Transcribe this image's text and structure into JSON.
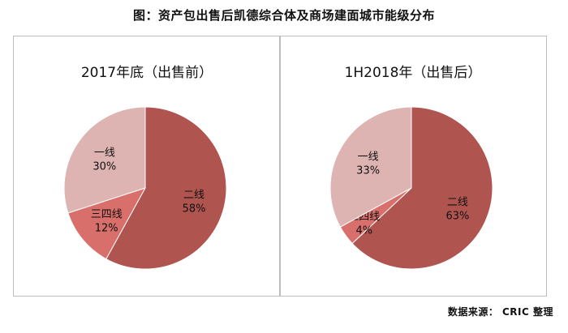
{
  "title": "图：资产包出售后凯德综合体及商场建面城市能级分布",
  "source": "数据来源： CRIC 整理",
  "colors": {
    "tier2": "#b05450",
    "tier3_4": "#d86f6b",
    "tier1": "#ddb4b1"
  },
  "chart_data": [
    {
      "type": "pie",
      "title": "2017年底（出售前）",
      "slices": [
        {
          "label": "二线",
          "value": 58,
          "display": "58%",
          "color": "#b05450"
        },
        {
          "label": "三四线",
          "value": 12,
          "display": "12%",
          "color": "#d86f6b"
        },
        {
          "label": "一线",
          "value": 30,
          "display": "30%",
          "color": "#ddb4b1"
        }
      ]
    },
    {
      "type": "pie",
      "title": "1H2018年（出售后）",
      "slices": [
        {
          "label": "二线",
          "value": 63,
          "display": "63%",
          "color": "#b05450"
        },
        {
          "label": "三四线",
          "value": 4,
          "display": "4%",
          "color": "#d86f6b"
        },
        {
          "label": "一线",
          "value": 33,
          "display": "33%",
          "color": "#ddb4b1"
        }
      ]
    }
  ]
}
